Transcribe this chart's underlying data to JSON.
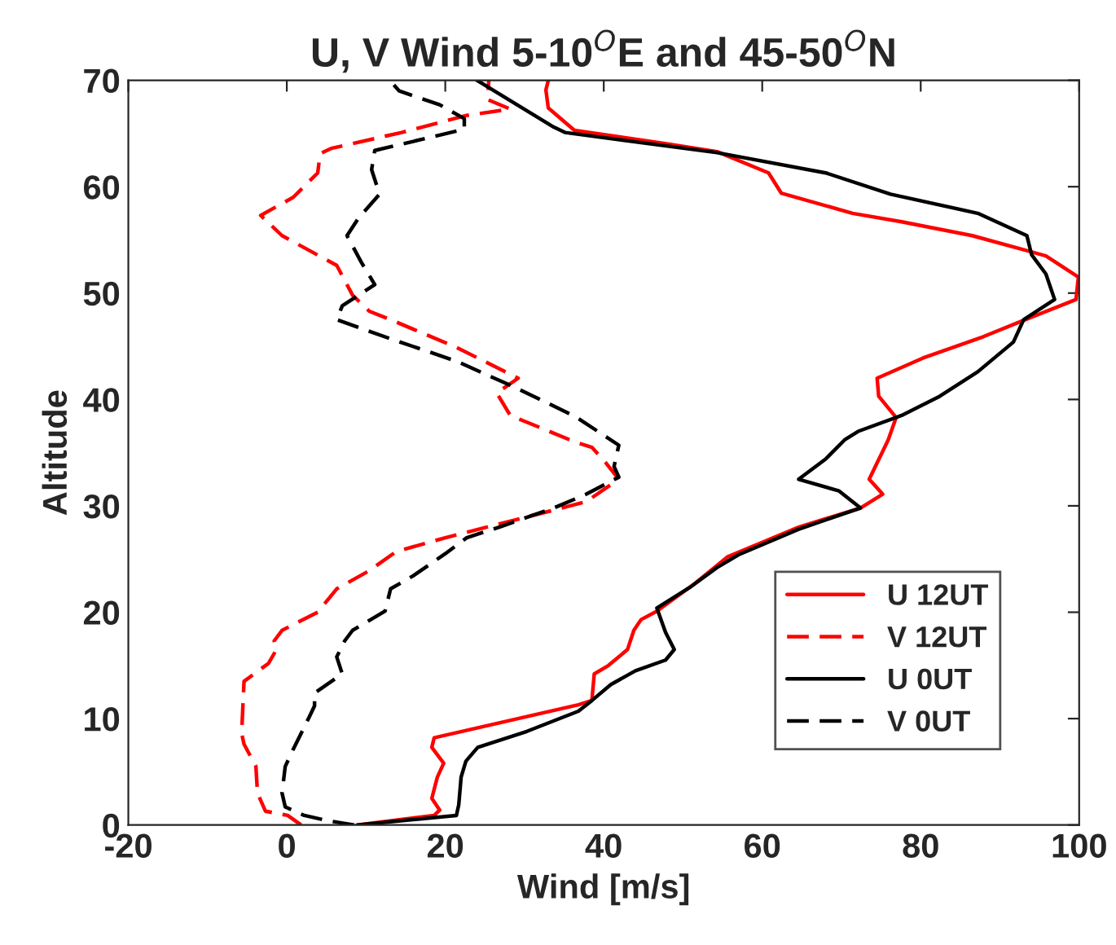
{
  "chart_data": {
    "type": "line",
    "title": "U, V Wind 5-10$^{O}$E and 45-50$^{O}$N",
    "xlabel": "Wind [m/s]",
    "ylabel": "Altitude",
    "xlim": [
      -20,
      100
    ],
    "xticks": [
      -20,
      0,
      20,
      40,
      60,
      80,
      100
    ],
    "ylim": [
      0,
      70
    ],
    "yticks": [
      0,
      10,
      20,
      30,
      40,
      50,
      60,
      70
    ],
    "grid": false,
    "legend": "bottom right",
    "marker": "none",
    "series": [
      {
        "name": "U 12UT",
        "color": "#ff0000",
        "line_style": "solid",
        "x": [
          8.9,
          18.6,
          19.3,
          18.3,
          19.0,
          19.8,
          18.3,
          18.6,
          36.8,
          38.5,
          38.8,
          40.6,
          43.0,
          43.8,
          44.7,
          46.7,
          51.5,
          55.6,
          59.8,
          64.6,
          72.4,
          75.2,
          73.5,
          75.9,
          76.9,
          74.7,
          74.5,
          80.3,
          87.9,
          93.2,
          99.6,
          99.9,
          95.8,
          86.5,
          77.6,
          71.4,
          62.4,
          60.8,
          54.3,
          47.4,
          36.3,
          33.0,
          32.7,
          33.0
        ],
        "values": [
          0,
          0.9,
          1.4,
          2.5,
          4.5,
          5.8,
          7.3,
          8.2,
          11.3,
          11.7,
          14.2,
          15.0,
          16.5,
          18.3,
          19.3,
          20.1,
          22.7,
          25.2,
          26.5,
          28.0,
          29.8,
          31.1,
          32.5,
          36.2,
          38.3,
          40.3,
          42.0,
          43.9,
          45.9,
          47.5,
          49.4,
          51.5,
          53.5,
          55.4,
          56.7,
          57.5,
          59.4,
          61.3,
          63.3,
          64.1,
          65.3,
          67.4,
          69.1,
          70
        ]
      },
      {
        "name": "V 12UT",
        "color": "#ff0000",
        "line_style": "dashed",
        "x": [
          1.8,
          0.1,
          -2.7,
          -3.7,
          -3.9,
          -5.4,
          -5.7,
          -5.4,
          -2.3,
          -1.3,
          -1.6,
          -0.6,
          3.9,
          6.3,
          10.4,
          13.8,
          20.0,
          26.8,
          33.7,
          37.8,
          41.9,
          40.2,
          38.5,
          36.4,
          28.2,
          26.5,
          29.2,
          21.4,
          13.1,
          10.4,
          8.3,
          6.3,
          -0.6,
          -3.3,
          0.8,
          3.9,
          4.2,
          5.6,
          14.5,
          22.7,
          28.2,
          25.3,
          25.5
        ],
        "values": [
          0,
          0.9,
          1.3,
          3.0,
          5.5,
          7.6,
          8.6,
          13.5,
          15.2,
          16.5,
          17.3,
          18.3,
          20.0,
          22.2,
          23.9,
          25.7,
          27.0,
          28.3,
          29.6,
          30.4,
          32.5,
          34.1,
          35.5,
          36.0,
          38.5,
          40.6,
          42.0,
          44.9,
          47.5,
          48.3,
          49.8,
          52.6,
          55.4,
          57.3,
          59.0,
          61.3,
          63.1,
          63.6,
          65.1,
          66.7,
          67.3,
          68.2,
          70
        ]
      },
      {
        "name": "U 0UT",
        "color": "#000000",
        "line_style": "solid",
        "x": [
          8.9,
          21.4,
          21.7,
          22.0,
          22.6,
          24.1,
          30.3,
          36.8,
          38.5,
          40.9,
          44.0,
          47.8,
          48.9,
          47.8,
          46.7,
          50.8,
          54.3,
          57.0,
          64.6,
          72.4,
          69.7,
          64.6,
          68.0,
          70.4,
          72.1,
          77.6,
          82.4,
          87.2,
          91.7,
          93.0,
          96.9,
          95.8,
          94.0,
          93.4,
          87.2,
          76.2,
          68.0,
          54.3,
          35.1,
          33.7,
          24.0
        ],
        "values": [
          0,
          0.9,
          1.9,
          4.5,
          6.0,
          7.3,
          8.8,
          10.7,
          11.7,
          13.2,
          14.5,
          15.5,
          16.5,
          18.1,
          20.4,
          22.3,
          24.2,
          25.4,
          27.8,
          29.8,
          31.4,
          32.5,
          34.4,
          36.2,
          37.0,
          38.5,
          40.3,
          42.6,
          45.4,
          47.5,
          49.4,
          51.8,
          53.6,
          55.4,
          57.5,
          59.3,
          61.3,
          63.2,
          65.1,
          65.6,
          70
        ]
      },
      {
        "name": "V 0UT",
        "color": "#000000",
        "line_style": "dashed",
        "x": [
          8.5,
          5.2,
          2.2,
          -0.2,
          -0.6,
          -0.2,
          0.8,
          2.8,
          3.5,
          3.5,
          7.0,
          6.3,
          7.3,
          8.3,
          12.4,
          13.1,
          15.9,
          20.0,
          22.7,
          26.8,
          33.7,
          37.8,
          41.9,
          41.3,
          41.9,
          36.4,
          28.9,
          21.4,
          13.1,
          6.3,
          7.0,
          11.1,
          9.4,
          7.6,
          9.0,
          11.7,
          10.7,
          11.1,
          22.4,
          22.4,
          19.3,
          14.2,
          13.0
        ],
        "values": [
          0,
          0.4,
          0.9,
          1.7,
          3.0,
          5.5,
          7.1,
          10.1,
          11.2,
          12.4,
          14.2,
          15.8,
          17.3,
          18.3,
          20.1,
          22.2,
          23.4,
          25.5,
          27.0,
          28.0,
          29.8,
          31.1,
          32.7,
          33.7,
          35.7,
          38.4,
          41.1,
          43.6,
          45.7,
          47.5,
          48.8,
          50.8,
          52.9,
          55.4,
          57.0,
          59.3,
          61.6,
          63.4,
          65.4,
          66.4,
          67.7,
          69.0,
          70
        ]
      }
    ]
  }
}
